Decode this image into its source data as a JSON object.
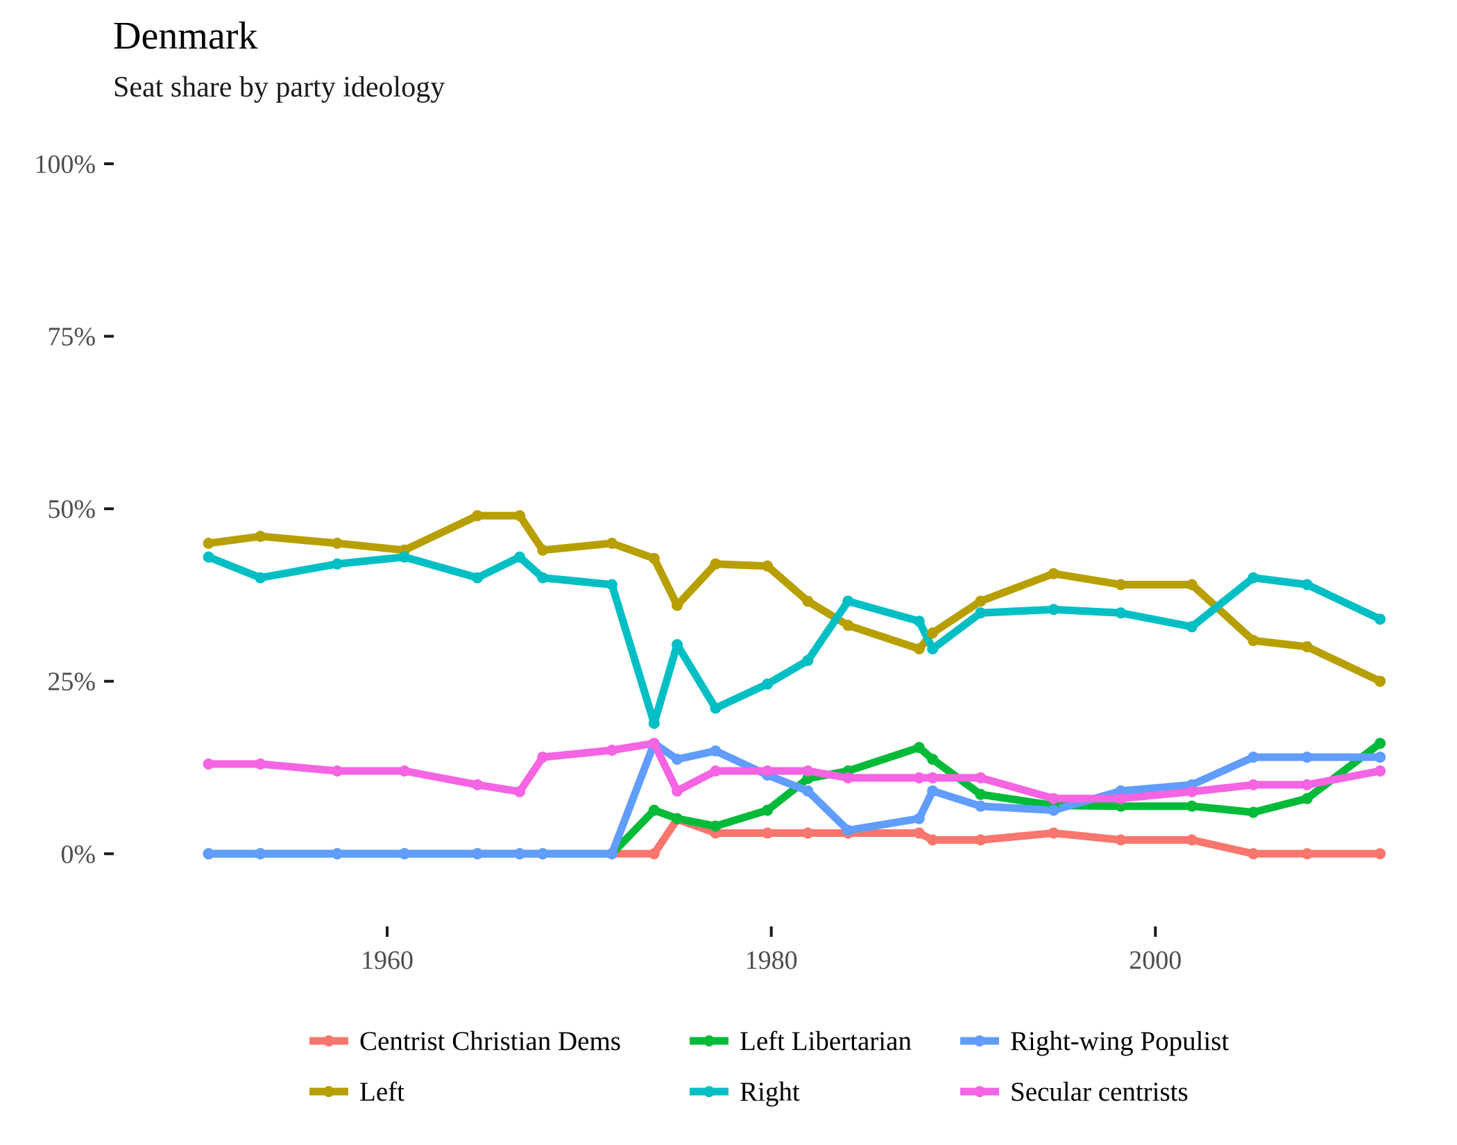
{
  "chart_data": {
    "type": "line",
    "title": "Denmark",
    "subtitle": "Seat share by party ideology",
    "xlabel": "",
    "ylabel": "",
    "xlim": [
      1948.8,
      2012.2
    ],
    "ylim": [
      -0.05,
      1.0
    ],
    "x_ticks": [
      1960,
      1980,
      2000
    ],
    "x_tick_labels": [
      "1960",
      "1980",
      "2000"
    ],
    "y_ticks": [
      0,
      0.25,
      0.5,
      0.75,
      1.0
    ],
    "y_tick_labels": [
      "0%",
      "25%",
      "50%",
      "75%",
      "100%"
    ],
    "grid": false,
    "legend_position": "bottom",
    "x": [
      1950.7,
      1953.4,
      1957.4,
      1960.9,
      1964.7,
      1966.9,
      1968.1,
      1971.7,
      1973.9,
      1975.1,
      1977.1,
      1979.8,
      1981.9,
      1984.0,
      1987.7,
      1988.4,
      1990.9,
      1994.7,
      1998.2,
      2001.9,
      2005.1,
      2007.9,
      2011.7
    ],
    "series": [
      {
        "name": "Centrist Christian Dems",
        "color": "#F8766D",
        "values": [
          0,
          0,
          0,
          0,
          0,
          0,
          0,
          0,
          0,
          0.05,
          0.03,
          0.03,
          0.03,
          0.03,
          0.03,
          0.02,
          0.02,
          0.03,
          0.02,
          0.02,
          0,
          0,
          0
        ]
      },
      {
        "name": "Left Libertarian",
        "color": "#00BA38",
        "values": [
          0,
          0,
          0,
          0,
          0,
          0,
          0,
          0,
          0.063,
          0.051,
          0.04,
          0.063,
          0.109,
          0.12,
          0.154,
          0.137,
          0.086,
          0.07,
          0.069,
          0.069,
          0.06,
          0.08,
          0.16
        ]
      },
      {
        "name": "Right-wing Populist",
        "color": "#619CFF",
        "values": [
          0,
          0,
          0,
          0,
          0,
          0,
          0,
          0,
          0.16,
          0.137,
          0.149,
          0.114,
          0.091,
          0.034,
          0.051,
          0.091,
          0.069,
          0.063,
          0.091,
          0.1,
          0.14,
          0.14,
          0.14
        ]
      },
      {
        "name": "Left",
        "color": "#B79F00",
        "values": [
          0.45,
          0.46,
          0.45,
          0.44,
          0.49,
          0.49,
          0.44,
          0.45,
          0.428,
          0.36,
          0.42,
          0.417,
          0.366,
          0.331,
          0.297,
          0.32,
          0.366,
          0.406,
          0.39,
          0.39,
          0.309,
          0.3,
          0.25
        ]
      },
      {
        "name": "Right",
        "color": "#00BFC4",
        "values": [
          0.43,
          0.4,
          0.42,
          0.43,
          0.4,
          0.43,
          0.4,
          0.39,
          0.189,
          0.303,
          0.211,
          0.246,
          0.28,
          0.366,
          0.337,
          0.297,
          0.349,
          0.354,
          0.349,
          0.329,
          0.4,
          0.39,
          0.34
        ]
      },
      {
        "name": "Secular centrists",
        "color": "#F564E3",
        "values": [
          0.13,
          0.13,
          0.12,
          0.12,
          0.1,
          0.09,
          0.14,
          0.15,
          0.16,
          0.091,
          0.12,
          0.12,
          0.12,
          0.11,
          0.11,
          0.11,
          0.11,
          0.08,
          0.08,
          0.09,
          0.1,
          0.1,
          0.12
        ]
      }
    ]
  }
}
